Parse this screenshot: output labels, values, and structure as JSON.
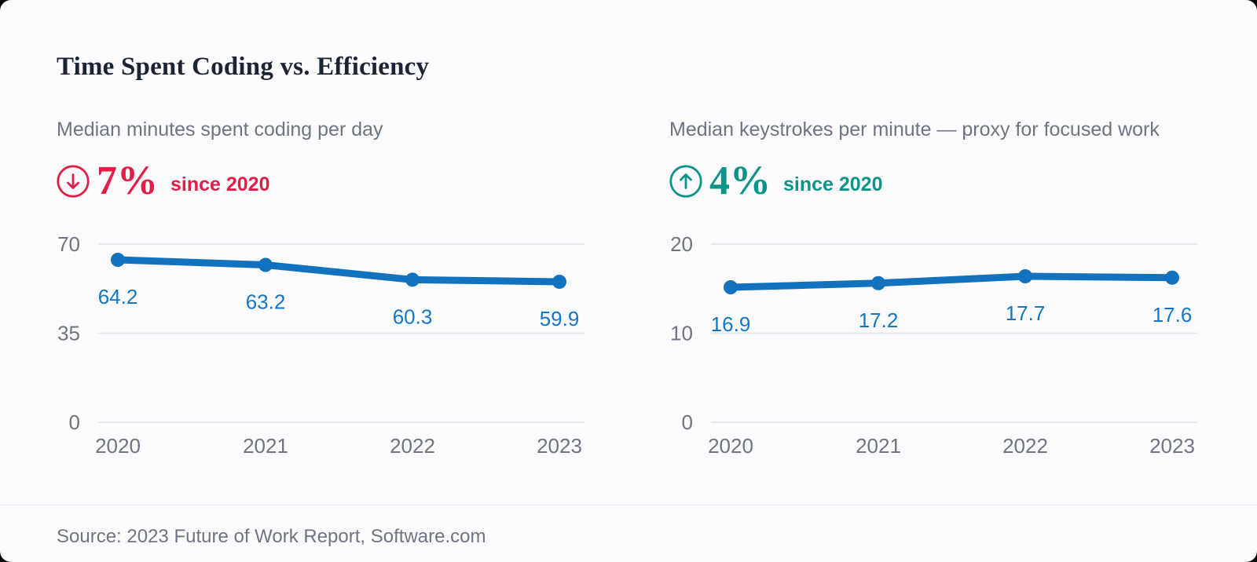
{
  "title": "Time Spent Coding vs. Efficiency",
  "footer": {
    "source": "Source: 2023 Future of Work Report, Software.com"
  },
  "colors": {
    "card_background": "#fbfbfd",
    "title_text": "#1c2433",
    "muted_text": "#6e7480",
    "grid_line": "#e6e8ec",
    "line_blue": "#1272bd",
    "value_label_blue": "#1377c5",
    "negative_red": "#e11d48",
    "positive_teal": "#0d9488"
  },
  "panels": [
    {
      "subtitle": "Median minutes spent coding per day",
      "stat_value": "7%",
      "stat_caption": "since 2020",
      "trend": "down",
      "color": "#e11d48"
    },
    {
      "subtitle": "Median keystrokes per minute — proxy for focused work",
      "stat_value": "4%",
      "stat_caption": "since 2020",
      "trend": "up",
      "color": "#0d9488"
    }
  ],
  "chart_data": [
    {
      "type": "line",
      "title": "Median minutes spent coding per day",
      "categories": [
        "2020",
        "2021",
        "2022",
        "2023"
      ],
      "values": [
        64.2,
        63.2,
        60.3,
        59.9
      ],
      "point_labels": [
        "64.2",
        "63.2",
        "60.3",
        "59.9"
      ],
      "yticks": [
        0,
        35,
        70
      ],
      "ylim": [
        0,
        70
      ],
      "xlabel": "",
      "ylabel": "",
      "grid": "horizontal",
      "legend": "none",
      "annotation": "down 7% since 2020"
    },
    {
      "type": "line",
      "title": "Median keystrokes per minute — proxy for focused work",
      "categories": [
        "2020",
        "2021",
        "2022",
        "2023"
      ],
      "values": [
        16.9,
        17.2,
        17.7,
        17.6
      ],
      "point_labels": [
        "16.9",
        "17.2",
        "17.7",
        "17.6"
      ],
      "yticks": [
        0,
        10,
        20
      ],
      "ylim": [
        0,
        20
      ],
      "xlabel": "",
      "ylabel": "",
      "grid": "horizontal",
      "legend": "none",
      "annotation": "up 4% since 2020"
    }
  ]
}
